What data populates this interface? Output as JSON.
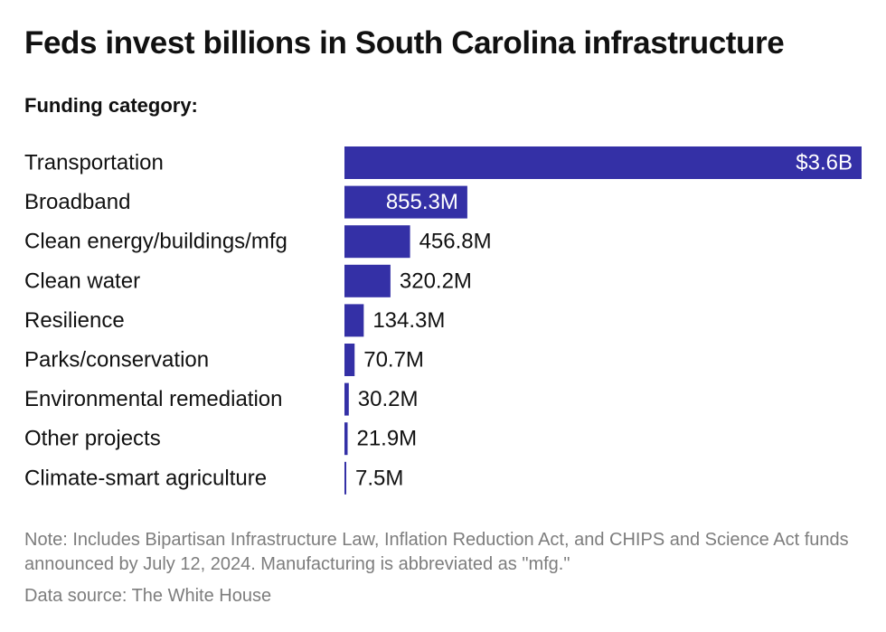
{
  "title": "Feds invest billions in South Carolina infrastructure",
  "subtitle": "Funding category:",
  "note": "Note: Includes Bipartisan Infrastructure Law, Inflation Reduction Act, and CHIPS and Science Act funds announced by July 12, 2024. Manufacturing is abbreviated as \"mfg.\"",
  "source": "Data source: The White House",
  "colors": {
    "bar": "#3430a6",
    "label_inside": "#ffffff",
    "label_outside": "#111111"
  },
  "chart_data": {
    "type": "bar",
    "orientation": "horizontal",
    "categories": [
      "Transportation",
      "Broadband",
      "Clean energy/buildings/mfg",
      "Clean water",
      "Resilience",
      "Parks/conservation",
      "Environmental remediation",
      "Other projects",
      "Climate-smart agriculture"
    ],
    "values": [
      3600,
      855.3,
      456.8,
      320.2,
      134.3,
      70.7,
      30.2,
      21.9,
      7.5
    ],
    "value_labels": [
      "$3.6B",
      "855.3M",
      "456.8M",
      "320.2M",
      "134.3M",
      "70.7M",
      "30.2M",
      "21.9M",
      "7.5M"
    ],
    "unit": "millions of dollars",
    "xlim": [
      0,
      3600
    ],
    "grid": false,
    "legend": "none"
  }
}
